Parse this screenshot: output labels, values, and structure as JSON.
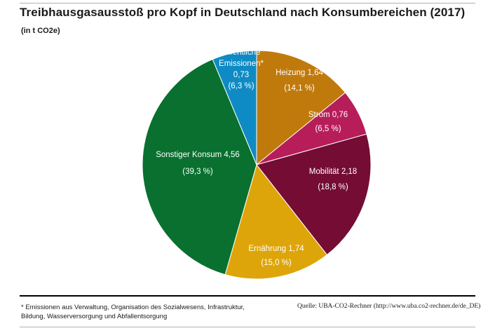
{
  "header": {
    "title": "Treibhausgasausstoß pro Kopf in Deutschland nach Konsumbereichen (2017)",
    "subtitle": "(in t CO2e)"
  },
  "chart_data": {
    "type": "pie",
    "title": "Treibhausgasausstoß pro Kopf in Deutschland nach Konsumbereichen (2017)",
    "unit": "(in t CO2e)",
    "slices": [
      {
        "category": "Heizung",
        "value": 1.64,
        "value_label": "1,64",
        "percent_label": "(14,1 %)",
        "color": "#c07a0c",
        "label_lines": [
          "Heizung 1,64",
          "(14,1 %)"
        ]
      },
      {
        "category": "Strom",
        "value": 0.76,
        "value_label": "0,76",
        "percent_label": "(6,5 %)",
        "color": "#b71d59",
        "label_lines": [
          "Strom 0,76",
          "(6,5 %)"
        ]
      },
      {
        "category": "Mobilität",
        "value": 2.18,
        "value_label": "2,18",
        "percent_label": "(18,8 %)",
        "color": "#740c34",
        "label_lines": [
          "Mobilität 2,18",
          "(18,8 %)"
        ]
      },
      {
        "category": "Ernährung",
        "value": 1.74,
        "value_label": "1,74",
        "percent_label": "(15,0 %)",
        "color": "#dea50a",
        "label_lines": [
          "Ernährung 1,74",
          "(15,0 %)"
        ]
      },
      {
        "category": "Sonstiger Konsum",
        "value": 4.56,
        "value_label": "4,56",
        "percent_label": "(39,3 %)",
        "color": "#09702f",
        "label_lines": [
          "Sonstiger Konsum 4,56",
          "(39,3 %)"
        ]
      },
      {
        "category": "Öffentliche Emissionen*",
        "value": 0.73,
        "value_label": "0,73",
        "percent_label": "(6,3 %)",
        "color": "#0e8bc4",
        "label_lines": [
          "Öffentliche",
          "Emissionen*",
          "0,73",
          "(6,3 %)"
        ]
      }
    ]
  },
  "footer": {
    "footnote_line1": "* Emissionen aus Verwaltung, Organisation des Sozialwesens, Infrastruktur,",
    "footnote_line2": "Bildung, Wasserversorgung und Abfallentsorgung",
    "source": "Quelle: UBA-CO2-Rechner (http://www.uba.co2-rechner.de/de_DE)"
  }
}
